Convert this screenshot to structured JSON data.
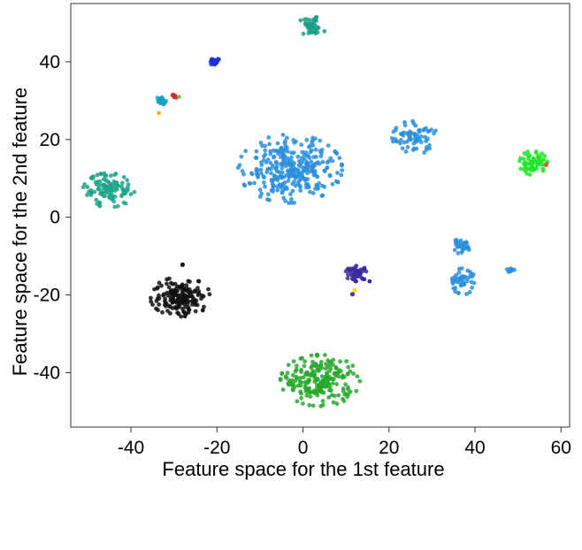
{
  "chart_data": {
    "type": "scatter",
    "title": "",
    "xlabel": "Feature space for the 1st feature",
    "ylabel": "Feature space for the 2nd feature",
    "xlim": [
      -54,
      62
    ],
    "ylim": [
      -54,
      55
    ],
    "grid": false,
    "legend": "none",
    "xticks": [
      -40,
      -20,
      0,
      20,
      40,
      60
    ],
    "yticks": [
      -40,
      -20,
      0,
      20,
      40
    ],
    "xtick_labels": [
      "-40",
      "-20",
      "0",
      "20",
      "40",
      "60"
    ],
    "ytick_labels": [
      "-40",
      "-20",
      "0",
      "20",
      "40"
    ],
    "clusters": [
      {
        "color": "#1a9e8a",
        "center": [
          2,
          49
        ],
        "spread": [
          1.5,
          1.2
        ],
        "count": 40
      },
      {
        "color": "#1730d8",
        "center": [
          -20.5,
          40
        ],
        "spread": [
          0.6,
          0.4
        ],
        "count": 18
      },
      {
        "color": "#17a2c3",
        "center": [
          -33,
          30
        ],
        "spread": [
          0.5,
          0.5
        ],
        "count": 14
      },
      {
        "color": "#d62728",
        "center": [
          -30,
          31.2
        ],
        "spread": [
          0.3,
          0.3
        ],
        "count": 6
      },
      {
        "color": "#2a8fdc",
        "center": [
          26,
          20.5
        ],
        "spread": [
          2.4,
          2.0
        ],
        "count": 70
      },
      {
        "color": "#2a8fdc",
        "center": [
          -3,
          12.5
        ],
        "spread": [
          5.5,
          4.0
        ],
        "count": 320
      },
      {
        "color": "#22e52a",
        "center": [
          53.5,
          14
        ],
        "spread": [
          1.5,
          1.4
        ],
        "count": 70
      },
      {
        "color": "#1fa58a",
        "center": [
          -45,
          7
        ],
        "spread": [
          2.8,
          2.0
        ],
        "count": 110
      },
      {
        "color": "#2a8fdc",
        "center": [
          36.5,
          -7.5
        ],
        "spread": [
          1.1,
          0.8
        ],
        "count": 30
      },
      {
        "color": "#2a8fdc",
        "center": [
          36.8,
          -16.5
        ],
        "spread": [
          1.5,
          1.6
        ],
        "count": 50
      },
      {
        "color": "#2a8fdc",
        "center": [
          48.3,
          -13.5
        ],
        "spread": [
          0.4,
          0.3
        ],
        "count": 12
      },
      {
        "color": "#3a2aa0",
        "center": [
          12.5,
          -14.5
        ],
        "spread": [
          1.2,
          0.9
        ],
        "count": 50
      },
      {
        "color": "#111111",
        "center": [
          -28.5,
          -20.5
        ],
        "spread": [
          3.2,
          2.3
        ],
        "count": 170
      },
      {
        "color": "#27a82b",
        "center": [
          4,
          -42
        ],
        "spread": [
          4.2,
          3.0
        ],
        "count": 220
      }
    ],
    "extra_points": [
      {
        "x": -33,
        "y": 30,
        "color": "#17a2c3",
        "size": 5
      },
      {
        "x": -33.5,
        "y": 26.8,
        "color": "#f5a623",
        "size": 2.3
      },
      {
        "x": -28.8,
        "y": 31.0,
        "color": "#6cbf4c",
        "size": 2.3
      },
      {
        "x": 56.5,
        "y": 13.5,
        "color": "#e4513f",
        "size": 2.6
      },
      {
        "x": -28,
        "y": -12.2,
        "color": "#111111",
        "size": 2.6
      },
      {
        "x": 11.5,
        "y": -19.8,
        "color": "#6a2a9c",
        "size": 2.6
      },
      {
        "x": 12,
        "y": -18.8,
        "color": "#f2e21a",
        "size": 2.6
      },
      {
        "x": 15.5,
        "y": -16.5,
        "color": "#3a2aa0",
        "size": 2.4
      },
      {
        "x": -20.5,
        "y": 40,
        "color": "#1730d8",
        "size": 3.5
      },
      {
        "x": 48.3,
        "y": -13.5,
        "color": "#2a8fdc",
        "size": 3.5
      }
    ]
  }
}
